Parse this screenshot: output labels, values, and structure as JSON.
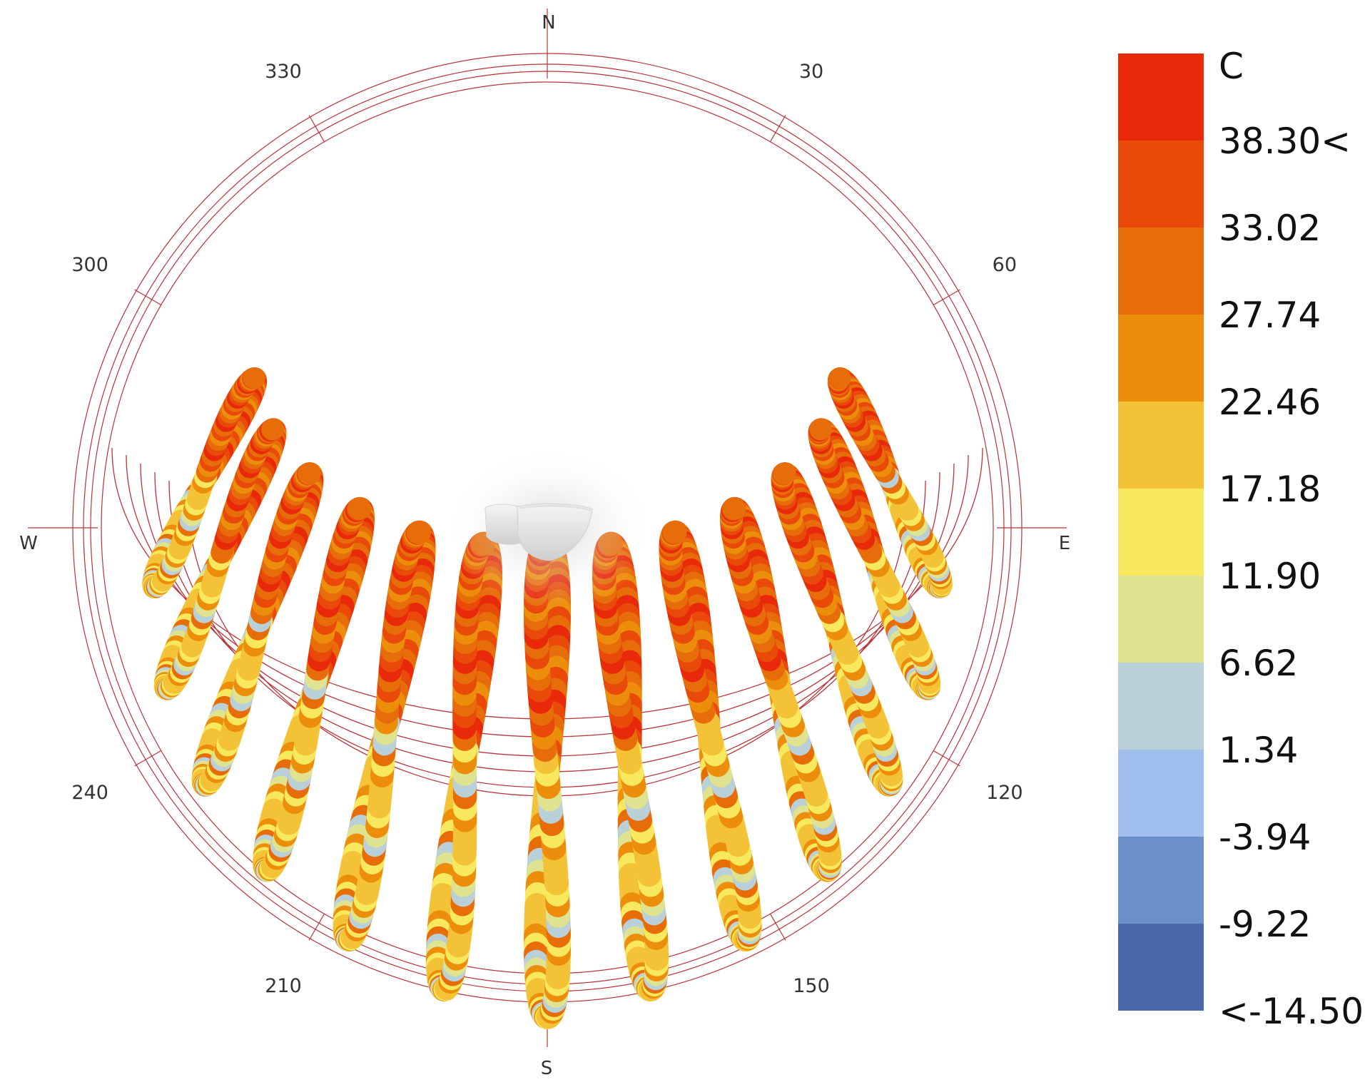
{
  "chart_data": {
    "type": "sunpath",
    "legend": {
      "unit": "C",
      "labels": [
        "38.30<",
        "33.02",
        "27.74",
        "22.46",
        "17.18",
        "11.90",
        "6.62",
        "1.34",
        "-3.94",
        "-9.22",
        "<-14.50"
      ],
      "colors": [
        "#e82a0b",
        "#e94a0a",
        "#e76d0b",
        "#ec8e0b",
        "#f4c236",
        "#f8e85d",
        "#dfe28e",
        "#b9d0d8",
        "#a0bfee",
        "#6a8fc9",
        "#4a69ab"
      ]
    },
    "directions": {
      "north": "N",
      "east": "E",
      "south": "S",
      "west": "W"
    },
    "azimuth_ticks": [
      {
        "az": 30,
        "label": "30"
      },
      {
        "az": 60,
        "label": "60"
      },
      {
        "az": 120,
        "label": "120"
      },
      {
        "az": 150,
        "label": "150"
      },
      {
        "az": 210,
        "label": "210"
      },
      {
        "az": 240,
        "label": "240"
      },
      {
        "az": 300,
        "label": "300"
      },
      {
        "az": 330,
        "label": "330"
      }
    ],
    "analemma_hours": [
      6,
      7,
      8,
      9,
      10,
      11,
      12,
      13,
      14,
      15,
      16,
      17,
      18
    ],
    "grid_arcs": true
  }
}
